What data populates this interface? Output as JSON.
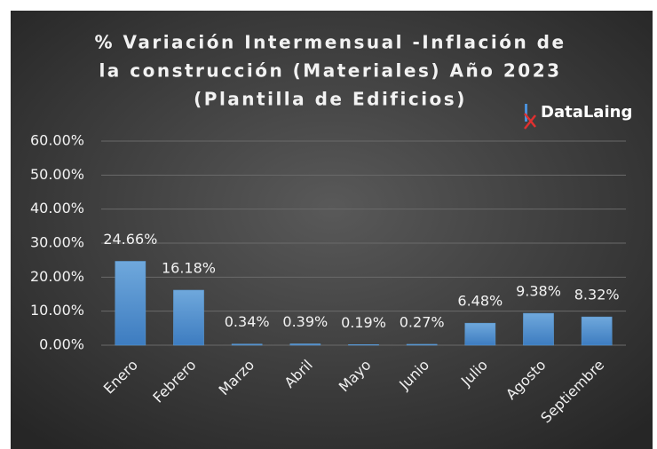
{
  "chart_data": {
    "type": "bar",
    "title": [
      "% Variación Intermensual -Inflación de",
      "la construcción (Materiales) Año 2023",
      "(Plantilla de Edificios)"
    ],
    "logo": "DataLaing",
    "categories": [
      "Enero",
      "Febrero",
      "Marzo",
      "Abril",
      "Mayo",
      "Junio",
      "Julio",
      "Agosto",
      "Septiembre"
    ],
    "values": [
      24.66,
      16.18,
      0.34,
      0.39,
      0.19,
      0.27,
      6.48,
      9.38,
      8.32
    ],
    "value_labels": [
      "24.66%",
      "16.18%",
      "0.34%",
      "0.39%",
      "0.19%",
      "0.27%",
      "6.48%",
      "9.38%",
      "8.32%"
    ],
    "color": "#5b9bd5",
    "ylim": [
      0,
      60
    ],
    "yticks": [
      {
        "value": 0,
        "label": "0.00%"
      },
      {
        "value": 10,
        "label": "10.00%"
      },
      {
        "value": 20,
        "label": "20.00%"
      },
      {
        "value": 30,
        "label": "30.00%"
      },
      {
        "value": 40,
        "label": "40.00%"
      },
      {
        "value": 50,
        "label": "50.00%"
      },
      {
        "value": 60,
        "label": "60.00%"
      }
    ],
    "grid": true
  }
}
